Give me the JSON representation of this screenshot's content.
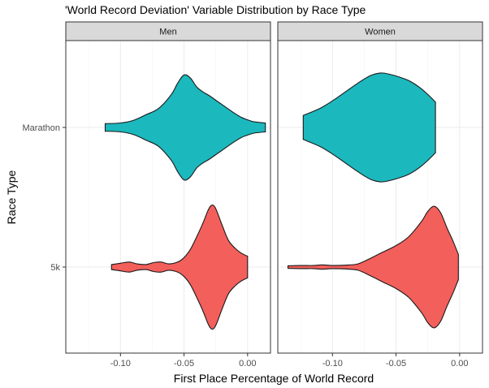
{
  "chart_data": {
    "type": "violin",
    "title": "'World Record Deviation' Variable Distribution by Race Type",
    "xlabel": "First Place Percentage of World Record",
    "ylabel": "Race Type",
    "xlim": [
      -0.143,
      0.018
    ],
    "x_ticks": [
      {
        "value": -0.1,
        "label": "-0.10"
      },
      {
        "value": -0.05,
        "label": "-0.05"
      },
      {
        "value": 0.0,
        "label": "0.00"
      }
    ],
    "y_categories": [
      "Marathon",
      "5k"
    ],
    "facets": [
      "Men",
      "Women"
    ],
    "grid": true,
    "legend": "none",
    "fill_colors": {
      "Marathon": "#1bb8bd",
      "5k": "#f35f5b"
    },
    "violins": [
      {
        "facet": "Men",
        "category": "Marathon",
        "profile": [
          [
            -0.112,
            0.06
          ],
          [
            -0.1,
            0.07
          ],
          [
            -0.09,
            0.11
          ],
          [
            -0.08,
            0.2
          ],
          [
            -0.07,
            0.3
          ],
          [
            -0.06,
            0.52
          ],
          [
            -0.055,
            0.7
          ],
          [
            -0.05,
            0.83
          ],
          [
            -0.045,
            0.78
          ],
          [
            -0.04,
            0.64
          ],
          [
            -0.035,
            0.56
          ],
          [
            -0.03,
            0.5
          ],
          [
            -0.025,
            0.43
          ],
          [
            -0.02,
            0.36
          ],
          [
            -0.015,
            0.29
          ],
          [
            -0.01,
            0.22
          ],
          [
            -0.005,
            0.16
          ],
          [
            0.0,
            0.12
          ],
          [
            0.005,
            0.09
          ],
          [
            0.014,
            0.07
          ]
        ]
      },
      {
        "facet": "Women",
        "category": "Marathon",
        "profile": [
          [
            -0.123,
            0.19
          ],
          [
            -0.11,
            0.3
          ],
          [
            -0.1,
            0.42
          ],
          [
            -0.09,
            0.56
          ],
          [
            -0.08,
            0.7
          ],
          [
            -0.07,
            0.82
          ],
          [
            -0.062,
            0.86
          ],
          [
            -0.055,
            0.84
          ],
          [
            -0.048,
            0.8
          ],
          [
            -0.04,
            0.74
          ],
          [
            -0.032,
            0.64
          ],
          [
            -0.025,
            0.52
          ],
          [
            -0.019,
            0.4
          ]
        ]
      },
      {
        "facet": "Men",
        "category": "5k",
        "profile": [
          [
            -0.107,
            0.04
          ],
          [
            -0.1,
            0.06
          ],
          [
            -0.093,
            0.08
          ],
          [
            -0.087,
            0.05
          ],
          [
            -0.08,
            0.04
          ],
          [
            -0.074,
            0.07
          ],
          [
            -0.068,
            0.08
          ],
          [
            -0.062,
            0.05
          ],
          [
            -0.055,
            0.08
          ],
          [
            -0.05,
            0.15
          ],
          [
            -0.045,
            0.28
          ],
          [
            -0.04,
            0.48
          ],
          [
            -0.035,
            0.7
          ],
          [
            -0.031,
            0.9
          ],
          [
            -0.028,
            0.98
          ],
          [
            -0.025,
            0.92
          ],
          [
            -0.02,
            0.66
          ],
          [
            -0.015,
            0.42
          ],
          [
            -0.01,
            0.3
          ],
          [
            -0.005,
            0.22
          ],
          [
            0.0,
            0.17
          ]
        ]
      },
      {
        "facet": "Women",
        "category": "5k",
        "profile": [
          [
            -0.135,
            0.02
          ],
          [
            -0.125,
            0.025
          ],
          [
            -0.115,
            0.025
          ],
          [
            -0.108,
            0.035
          ],
          [
            -0.1,
            0.025
          ],
          [
            -0.09,
            0.03
          ],
          [
            -0.08,
            0.05
          ],
          [
            -0.07,
            0.14
          ],
          [
            -0.06,
            0.24
          ],
          [
            -0.05,
            0.34
          ],
          [
            -0.04,
            0.48
          ],
          [
            -0.03,
            0.72
          ],
          [
            -0.025,
            0.88
          ],
          [
            -0.02,
            0.96
          ],
          [
            -0.015,
            0.86
          ],
          [
            -0.01,
            0.62
          ],
          [
            -0.005,
            0.4
          ],
          [
            -0.001,
            0.2
          ]
        ]
      }
    ]
  }
}
